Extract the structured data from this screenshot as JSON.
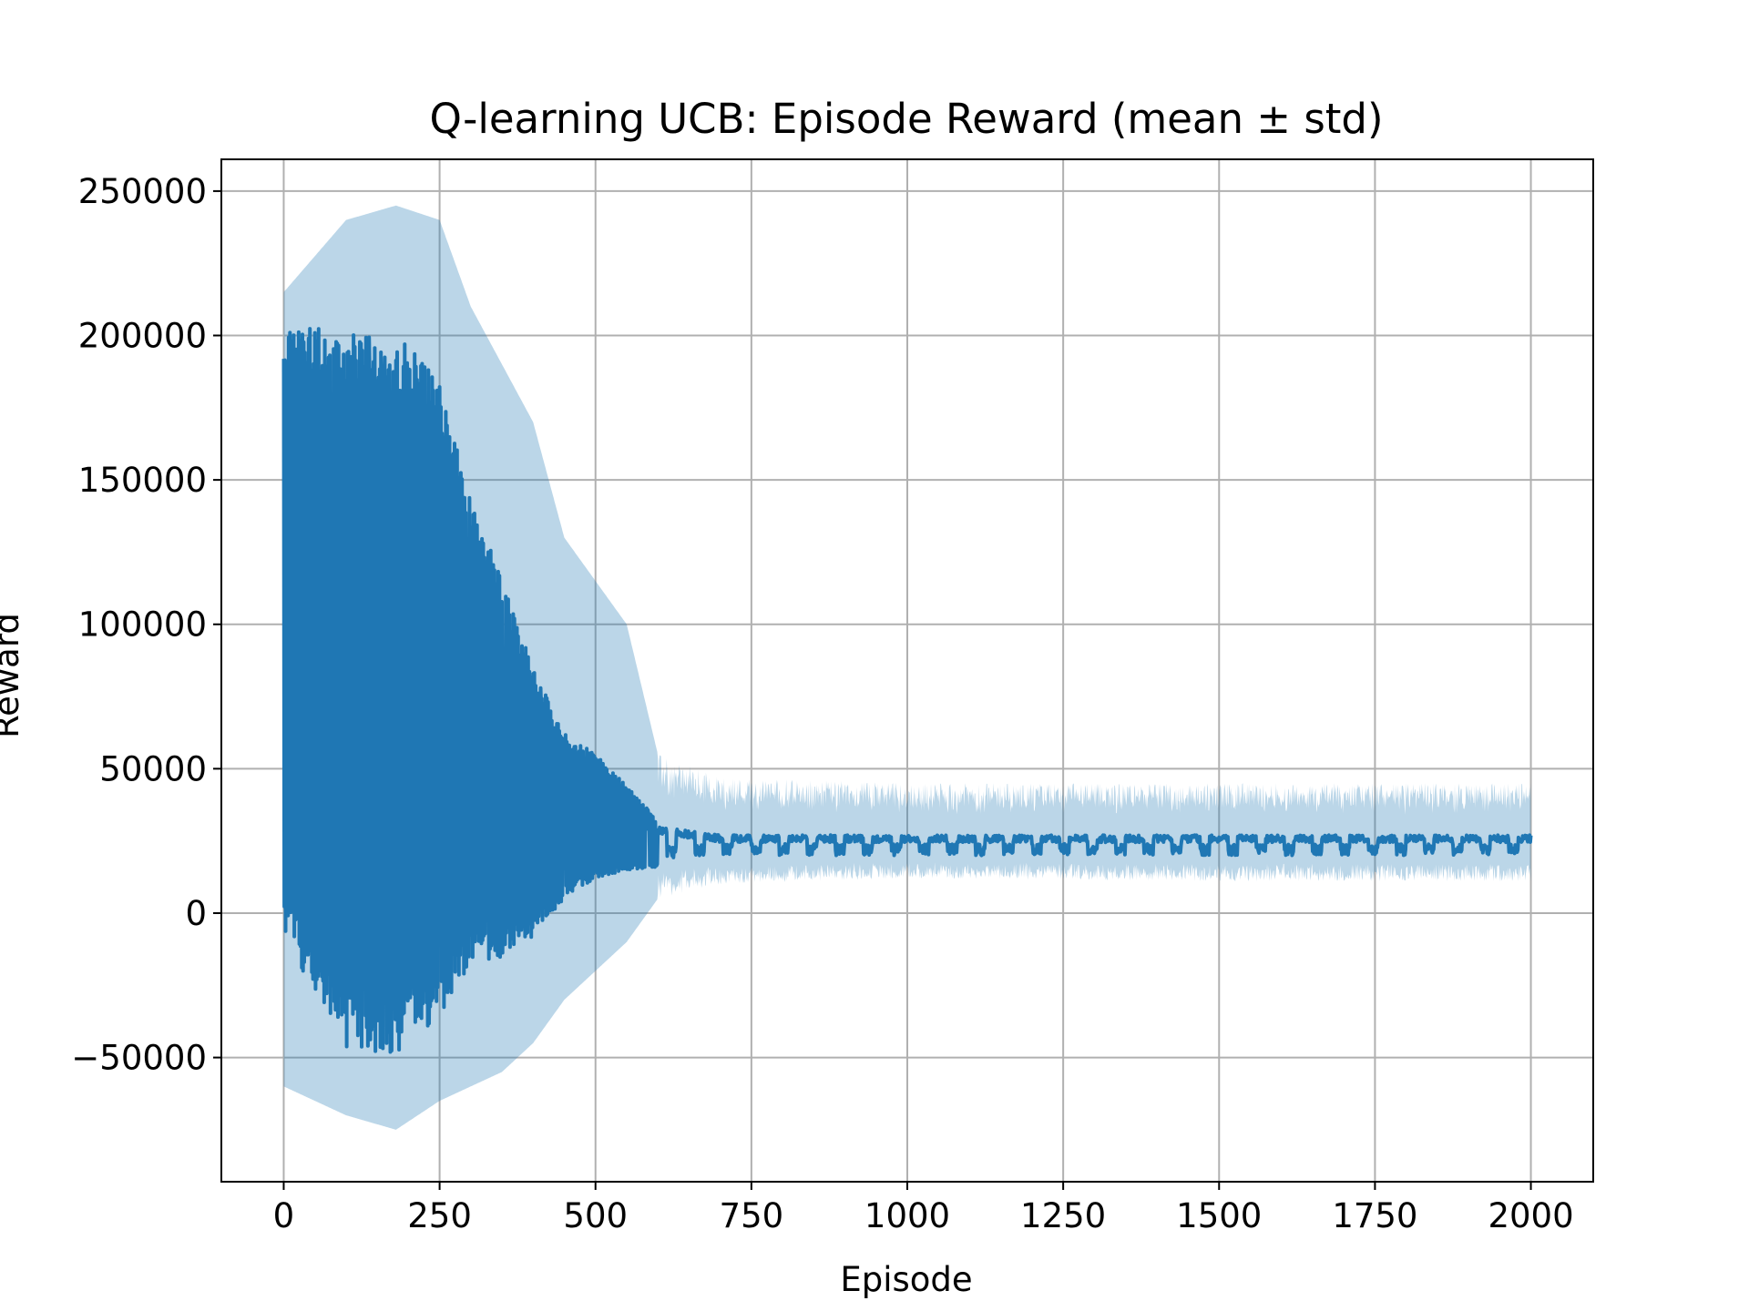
{
  "chart_data": {
    "type": "line",
    "title": "Q-learning UCB: Episode Reward (mean ± std)",
    "xlabel": "Episode",
    "ylabel": "Reward",
    "xlim": [
      -100,
      2100
    ],
    "ylim": [
      -93000,
      261000
    ],
    "xticks": [
      0,
      250,
      500,
      750,
      1000,
      1250,
      1500,
      1750,
      2000
    ],
    "xtick_labels": [
      "0",
      "250",
      "500",
      "750",
      "1000",
      "1250",
      "1500",
      "1750",
      "2000"
    ],
    "yticks": [
      -50000,
      0,
      50000,
      100000,
      150000,
      200000,
      250000
    ],
    "ytick_labels": [
      "−50000",
      "0",
      "50000",
      "100000",
      "150000",
      "200000",
      "250000"
    ],
    "grid": true,
    "legend": "none",
    "colors": {
      "mean_line": "#1f77b4",
      "std_band": "#1f77b4",
      "std_band_opacity": 0.3,
      "grid": "#b0b0b0"
    },
    "series": [
      {
        "role": "mean",
        "episodes": 2000,
        "envelope": {
          "episode": [
            0,
            100,
            180,
            250,
            300,
            350,
            400,
            450,
            500,
            550,
            600,
            700,
            1000,
            1500,
            2000
          ],
          "upper": [
            203000,
            202000,
            201000,
            184000,
            145000,
            115000,
            85000,
            62000,
            55000,
            44000,
            32000,
            29000,
            29000,
            29000,
            29000
          ],
          "lower": [
            -8000,
            -47000,
            -50000,
            -35000,
            -20000,
            -15000,
            -8000,
            5000,
            12000,
            15000,
            16000,
            17000,
            17000,
            17000,
            17000
          ]
        }
      },
      {
        "role": "std",
        "envelope": {
          "episode": [
            0,
            100,
            180,
            250,
            300,
            350,
            400,
            450,
            500,
            550,
            600,
            700,
            1000,
            1500,
            2000
          ],
          "upper": [
            215000,
            240000,
            245000,
            240000,
            210000,
            190000,
            170000,
            130000,
            115000,
            100000,
            55000,
            47000,
            45000,
            45000,
            45000
          ],
          "lower": [
            -60000,
            -70000,
            -75000,
            -65000,
            -60000,
            -55000,
            -45000,
            -30000,
            -20000,
            -10000,
            5000,
            10000,
            12000,
            11000,
            11000
          ]
        }
      }
    ]
  }
}
